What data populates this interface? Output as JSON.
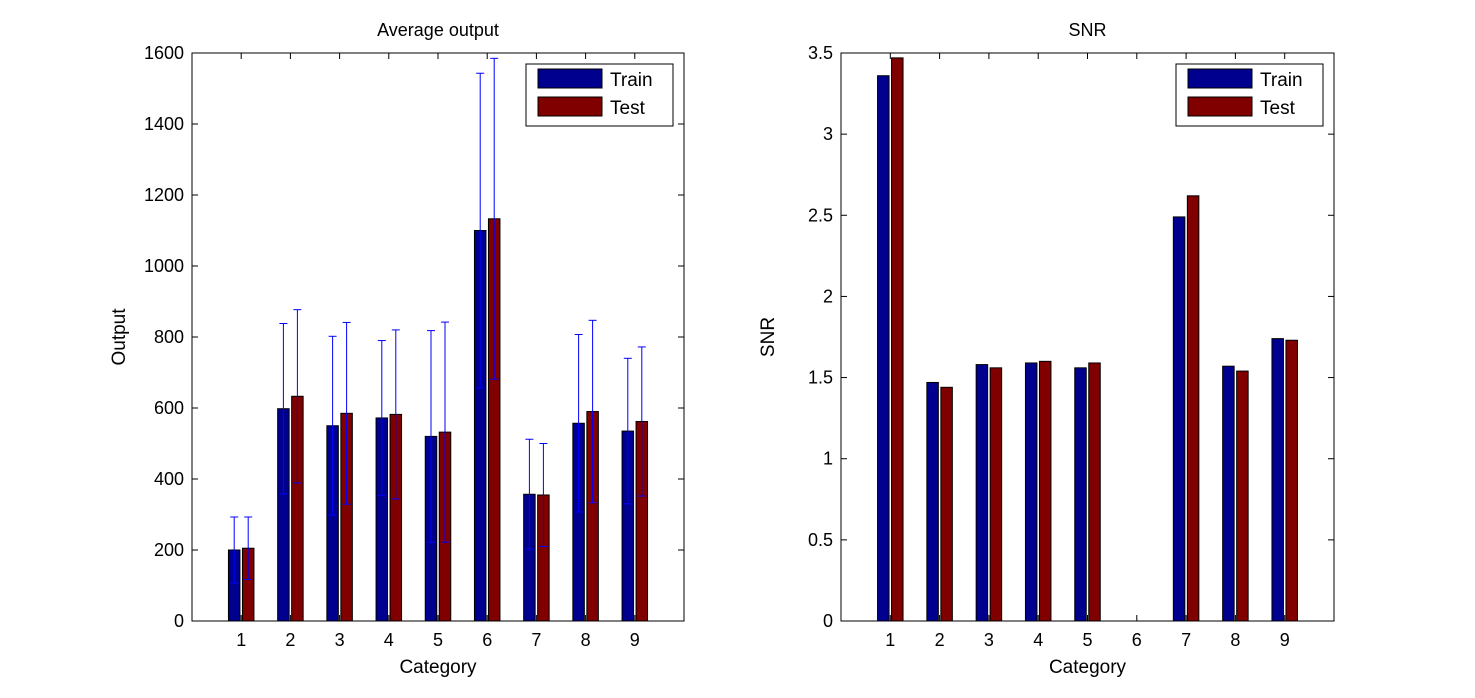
{
  "colors": {
    "train": "#00008F",
    "test": "#800000",
    "errorbar": "#0000FF",
    "axis": "#000000"
  },
  "chart_data": [
    {
      "type": "bar",
      "title": "Average output",
      "xlabel": "Category",
      "ylabel": "Output",
      "categories": [
        "1",
        "2",
        "3",
        "4",
        "5",
        "6",
        "7",
        "8",
        "9"
      ],
      "ylim": [
        0,
        1600
      ],
      "yticks": [
        "0",
        "200",
        "400",
        "600",
        "800",
        "1000",
        "1200",
        "1400",
        "1600"
      ],
      "legend": {
        "position": "top-right"
      },
      "series": [
        {
          "name": "Train",
          "values": [
            200,
            598,
            550,
            572,
            520,
            1100,
            357,
            557,
            535
          ],
          "error": [
            93,
            240,
            252,
            218,
            298,
            443,
            155,
            250,
            205
          ]
        },
        {
          "name": "Test",
          "values": [
            205,
            633,
            585,
            582,
            532,
            1133,
            355,
            590,
            562
          ],
          "error": [
            88,
            244,
            256,
            238,
            310,
            452,
            145,
            257,
            210
          ]
        }
      ],
      "grid": false
    },
    {
      "type": "bar",
      "title": "SNR",
      "xlabel": "Category",
      "ylabel": "SNR",
      "categories": [
        "1",
        "2",
        "3",
        "4",
        "5",
        "6",
        "7",
        "8",
        "9"
      ],
      "ylim": [
        0,
        3.5
      ],
      "yticks": [
        "0",
        "0.5",
        "1",
        "1.5",
        "2",
        "2.5",
        "3",
        "3.5"
      ],
      "legend": {
        "position": "top-right"
      },
      "series": [
        {
          "name": "Train",
          "values": [
            3.36,
            1.47,
            1.58,
            1.59,
            1.56,
            0,
            2.49,
            1.57,
            1.74
          ]
        },
        {
          "name": "Test",
          "values": [
            3.47,
            1.44,
            1.56,
            1.6,
            1.59,
            0,
            2.62,
            1.54,
            1.73
          ]
        }
      ],
      "grid": false
    }
  ]
}
